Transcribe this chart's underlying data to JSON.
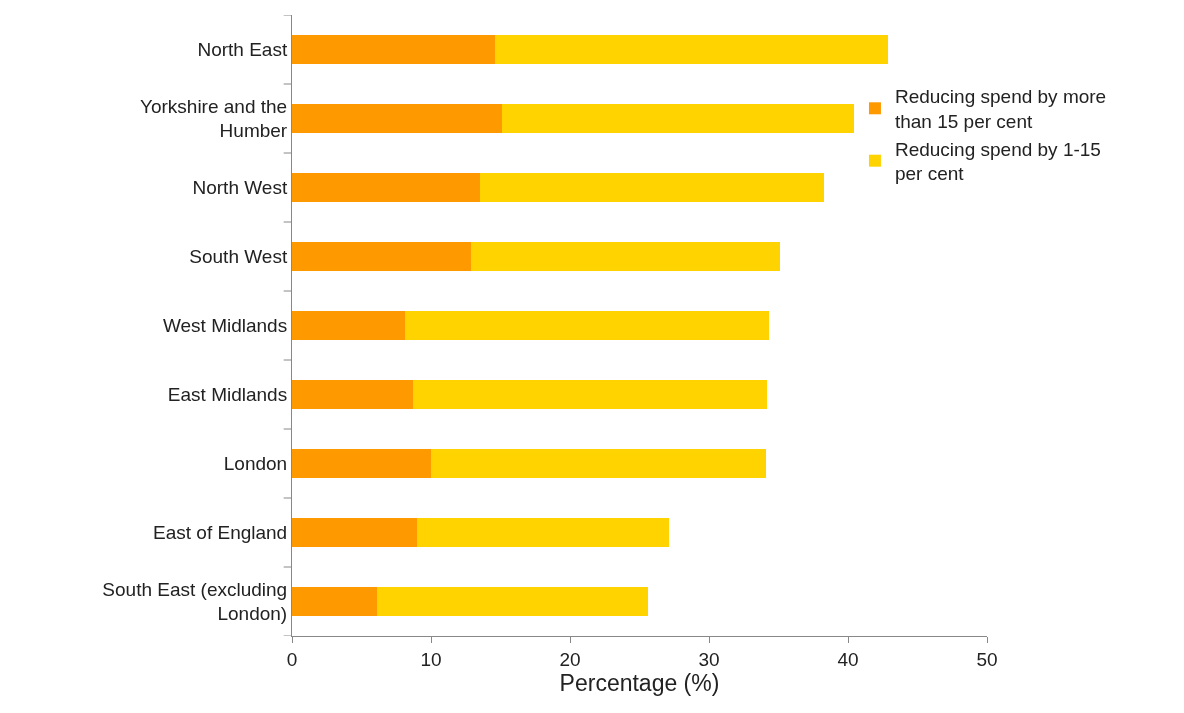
{
  "chart_data": {
    "type": "bar",
    "orientation": "horizontal",
    "stacked": true,
    "categories": [
      "North East",
      "Yorkshire and the Humber",
      "North West",
      "South West",
      "West Midlands",
      "East Midlands",
      "London",
      "East of England",
      "South East (excluding London)"
    ],
    "series": [
      {
        "name": "Reducing spend by more than 15 per cent",
        "color": "#ff9900",
        "values": [
          14.6,
          15.1,
          13.5,
          12.9,
          8.1,
          8.7,
          10.0,
          9.0,
          6.1
        ]
      },
      {
        "name": "Reducing spend by 1-15 per cent",
        "color": "#ffd300",
        "values": [
          28.3,
          25.3,
          24.8,
          22.2,
          26.2,
          25.5,
          24.1,
          18.1,
          19.5
        ]
      }
    ],
    "xlim": [
      0,
      50
    ],
    "xticks": [
      0,
      10,
      20,
      30,
      40,
      50
    ],
    "xlabel": "Percentage (%)",
    "grid": false,
    "legend": "top right"
  }
}
